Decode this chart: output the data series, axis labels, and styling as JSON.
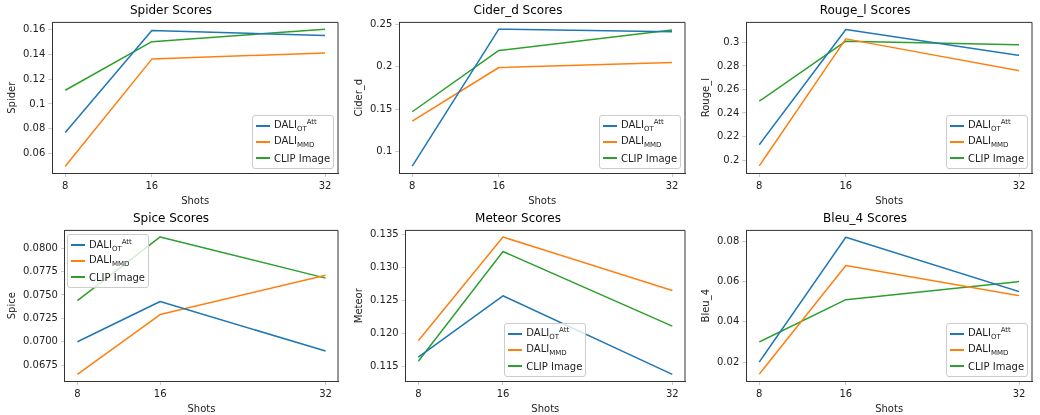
{
  "chart_data": [
    {
      "type": "line",
      "title": "Spider Scores",
      "xlabel": "Shots",
      "ylabel": "Spider",
      "x": [
        8,
        16,
        32
      ],
      "xlim": [
        6.8,
        33.2
      ],
      "xticks": [
        8,
        16,
        32
      ],
      "ylim": [
        0.0445,
        0.1655
      ],
      "yticks": [
        0.06,
        0.08,
        0.1,
        0.12,
        0.14,
        0.16
      ],
      "grid": false,
      "legend": "bottom right",
      "series": [
        {
          "name": "DALI$_{OT}$$^{Att}$",
          "color": "#1f77b4",
          "values": [
            0.077,
            0.159,
            0.155
          ]
        },
        {
          "name": "DALI$_{MMD}$",
          "color": "#ff7f0e",
          "values": [
            0.05,
            0.136,
            0.141
          ]
        },
        {
          "name": "CLIP Image",
          "color": "#2ca02c",
          "values": [
            0.111,
            0.15,
            0.16
          ]
        }
      ]
    },
    {
      "type": "line",
      "title": "Cider_d Scores",
      "xlabel": "Shots",
      "ylabel": "Cider_d",
      "x": [
        8,
        16,
        32
      ],
      "xlim": [
        6.8,
        33.2
      ],
      "xticks": [
        8,
        16,
        32
      ],
      "ylim": [
        0.075,
        0.252
      ],
      "yticks": [
        0.1,
        0.15,
        0.2,
        0.25
      ],
      "grid": false,
      "legend": "bottom right",
      "series": [
        {
          "name": "DALI$_{OT}$$^{Att}$",
          "color": "#1f77b4",
          "values": [
            0.083,
            0.244,
            0.241
          ]
        },
        {
          "name": "DALI$_{MMD}$",
          "color": "#ff7f0e",
          "values": [
            0.136,
            0.199,
            0.205
          ]
        },
        {
          "name": "CLIP Image",
          "color": "#2ca02c",
          "values": [
            0.147,
            0.219,
            0.243
          ]
        }
      ]
    },
    {
      "type": "line",
      "title": "Rouge_l Scores",
      "xlabel": "Shots",
      "ylabel": "Rouge_l",
      "x": [
        8,
        16,
        32
      ],
      "xlim": [
        6.8,
        33.2
      ],
      "xticks": [
        8,
        16,
        32
      ],
      "ylim": [
        0.189,
        0.317
      ],
      "yticks": [
        0.2,
        0.22,
        0.24,
        0.26,
        0.28,
        0.3
      ],
      "grid": false,
      "legend": "bottom right",
      "series": [
        {
          "name": "DALI$_{OT}$$^{Att}$",
          "color": "#1f77b4",
          "values": [
            0.213,
            0.311,
            0.289
          ]
        },
        {
          "name": "DALI$_{MMD}$",
          "color": "#ff7f0e",
          "values": [
            0.195,
            0.303,
            0.276
          ]
        },
        {
          "name": "CLIP Image",
          "color": "#2ca02c",
          "values": [
            0.25,
            0.301,
            0.298
          ]
        }
      ]
    },
    {
      "type": "line",
      "title": "Spice Scores",
      "xlabel": "Shots",
      "ylabel": "Spice",
      "x": [
        8,
        16,
        32
      ],
      "xlim": [
        6.8,
        33.2
      ],
      "xticks": [
        8,
        16,
        32
      ],
      "ylim": [
        0.0658,
        0.0819
      ],
      "yticks": [
        {
          "value": 0.0675,
          "label": "0.0675"
        },
        {
          "value": 0.07,
          "label": "0.0700"
        },
        {
          "value": 0.0725,
          "label": "0.0725"
        },
        {
          "value": 0.075,
          "label": "0.0750"
        },
        {
          "value": 0.0775,
          "label": "0.0775"
        },
        {
          "value": 0.08,
          "label": "0.0800"
        }
      ],
      "grid": false,
      "legend": "top left",
      "series": [
        {
          "name": "DALI$_{OT}$$^{Att}$",
          "color": "#1f77b4",
          "values": [
            0.07,
            0.0743,
            0.069
          ]
        },
        {
          "name": "DALI$_{MMD}$",
          "color": "#ff7f0e",
          "values": [
            0.0665,
            0.0729,
            0.0771
          ]
        },
        {
          "name": "CLIP Image",
          "color": "#2ca02c",
          "values": [
            0.0744,
            0.0812,
            0.0768
          ]
        }
      ]
    },
    {
      "type": "line",
      "title": "Meteor Scores",
      "xlabel": "Shots",
      "ylabel": "Meteor",
      "x": [
        8,
        16,
        32
      ],
      "xlim": [
        6.8,
        33.2
      ],
      "xticks": [
        8,
        16,
        32
      ],
      "ylim": [
        0.1128,
        0.1356
      ],
      "yticks": [
        {
          "value": 0.115,
          "label": "0.115"
        },
        {
          "value": 0.12,
          "label": "0.120"
        },
        {
          "value": 0.125,
          "label": "0.125"
        },
        {
          "value": 0.13,
          "label": "0.130"
        },
        {
          "value": 0.135,
          "label": "0.135"
        }
      ],
      "grid": false,
      "legend": "bottom",
      "series": [
        {
          "name": "DALI$_{OT}$$^{Att}$",
          "color": "#1f77b4",
          "values": [
            0.1164,
            0.1257,
            0.1138
          ]
        },
        {
          "name": "DALI$_{MMD}$",
          "color": "#ff7f0e",
          "values": [
            0.1189,
            0.1346,
            0.1265
          ]
        },
        {
          "name": "CLIP Image",
          "color": "#2ca02c",
          "values": [
            0.1158,
            0.1324,
            0.1211
          ]
        }
      ]
    },
    {
      "type": "line",
      "title": "Bleu_4 Scores",
      "xlabel": "Shots",
      "ylabel": "Bleu_4",
      "x": [
        8,
        16,
        32
      ],
      "xlim": [
        6.8,
        33.2
      ],
      "xticks": [
        8,
        16,
        32
      ],
      "ylim": [
        0.0106,
        0.0854
      ],
      "yticks": [
        0.02,
        0.04,
        0.06,
        0.08
      ],
      "grid": false,
      "legend": "bottom right",
      "series": [
        {
          "name": "DALI$_{OT}$$^{Att}$",
          "color": "#1f77b4",
          "values": [
            0.02,
            0.082,
            0.055
          ]
        },
        {
          "name": "DALI$_{MMD}$",
          "color": "#ff7f0e",
          "values": [
            0.014,
            0.068,
            0.053
          ]
        },
        {
          "name": "CLIP Image",
          "color": "#2ca02c",
          "values": [
            0.03,
            0.051,
            0.06
          ]
        }
      ]
    }
  ]
}
